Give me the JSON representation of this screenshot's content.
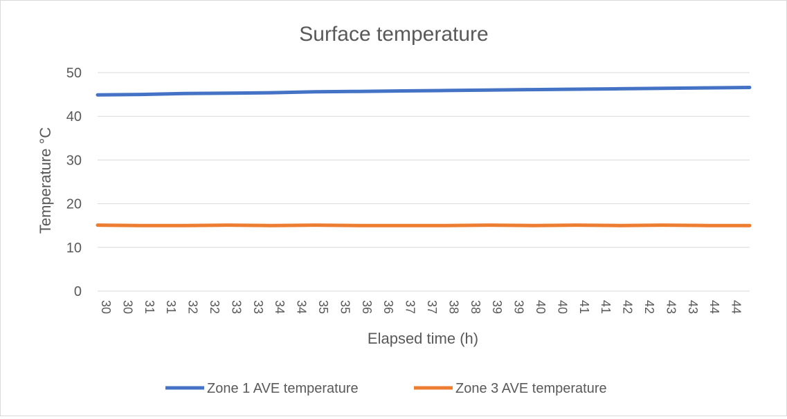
{
  "chart_data": {
    "type": "line",
    "title": "Surface temperature",
    "xlabel": "Elapsed time (h)",
    "ylabel": "Temperature °C",
    "ylim": [
      0,
      50
    ],
    "yticks": [
      0,
      10,
      20,
      30,
      40,
      50
    ],
    "x_tick_labels": [
      "30",
      "30",
      "31",
      "31",
      "32",
      "32",
      "33",
      "33",
      "34",
      "34",
      "35",
      "35",
      "36",
      "36",
      "37",
      "37",
      "38",
      "38",
      "39",
      "39",
      "40",
      "40",
      "41",
      "41",
      "42",
      "42",
      "43",
      "43",
      "44",
      "44"
    ],
    "x_range_hours": [
      30,
      45
    ],
    "grid": "horizontal",
    "legend_position": "bottom",
    "series": [
      {
        "name": "Zone 1 AVE temperature",
        "color": "#4472c4",
        "x": [
          30,
          31,
          32,
          33,
          34,
          35,
          36,
          37,
          38,
          39,
          40,
          41,
          42,
          43,
          44,
          45
        ],
        "values": [
          44.9,
          45.0,
          45.2,
          45.3,
          45.4,
          45.6,
          45.7,
          45.8,
          45.9,
          46.0,
          46.1,
          46.2,
          46.3,
          46.4,
          46.5,
          46.6
        ]
      },
      {
        "name": "Zone 3 AVE temperature",
        "color": "#ed7d31",
        "x": [
          30,
          31,
          32,
          33,
          34,
          35,
          36,
          37,
          38,
          39,
          40,
          41,
          42,
          43,
          44,
          45
        ],
        "values": [
          15.1,
          15.0,
          15.0,
          15.1,
          15.0,
          15.1,
          15.0,
          15.0,
          15.0,
          15.1,
          15.0,
          15.1,
          15.0,
          15.1,
          15.0,
          15.0
        ]
      }
    ]
  }
}
